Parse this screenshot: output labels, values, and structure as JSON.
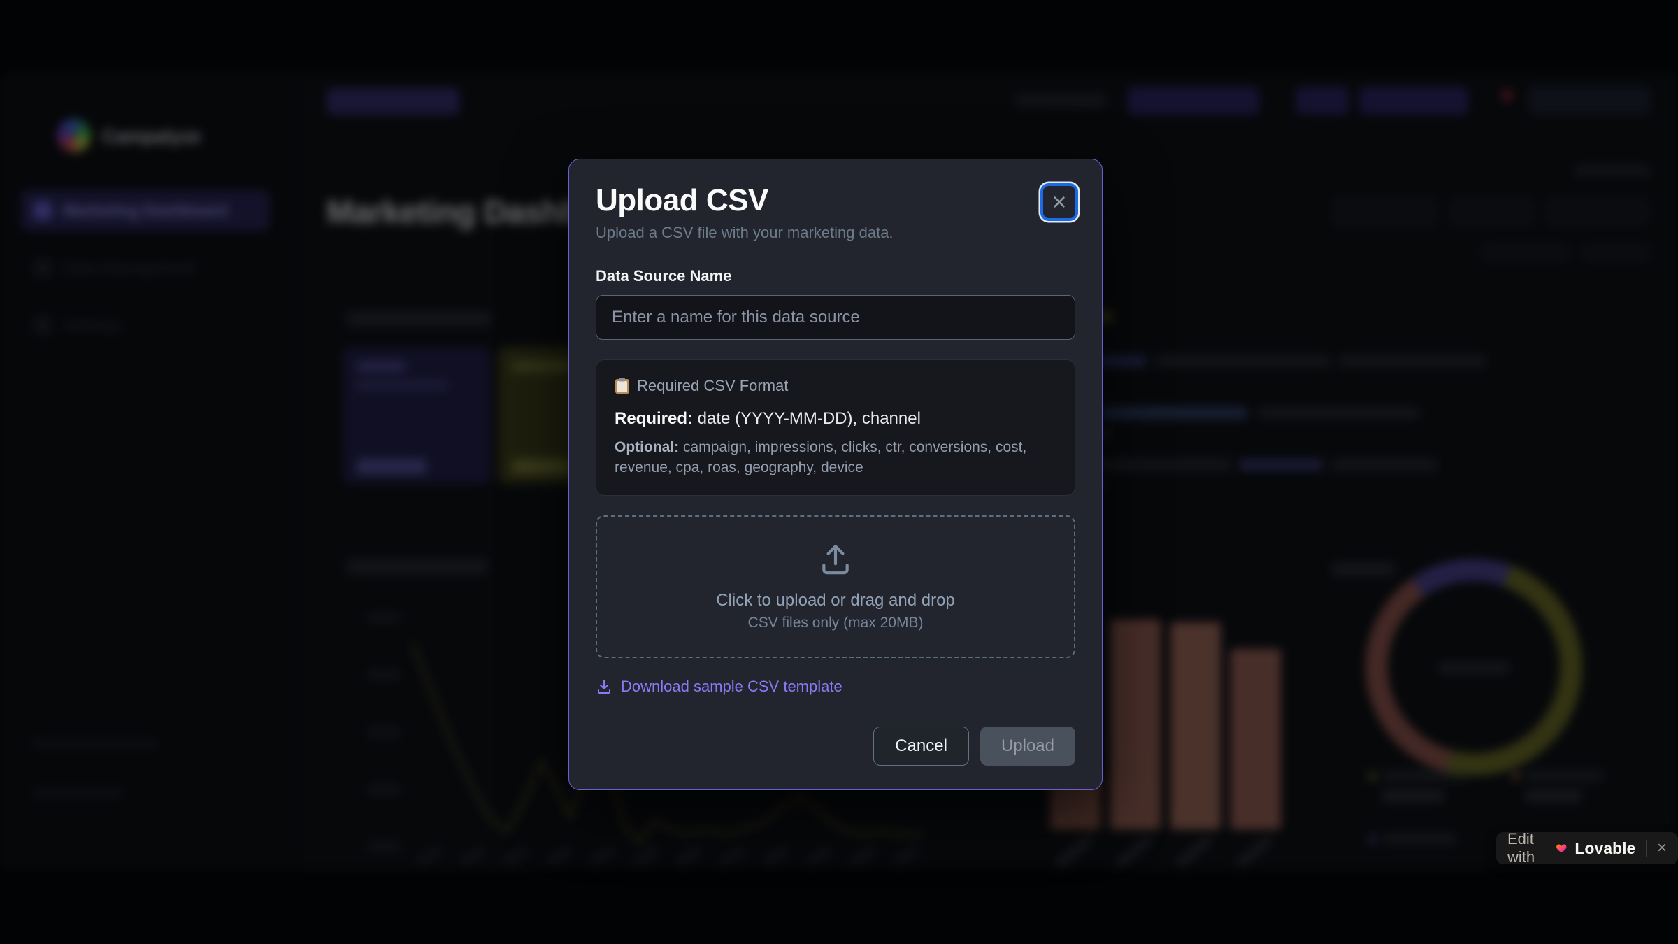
{
  "app": {
    "brand": "Campalyze",
    "heading": "Marketing Dashboard"
  },
  "sidebar": {
    "items": [
      {
        "label": "Marketing Dashboard",
        "active": true
      },
      {
        "label": "Data Management",
        "active": false
      },
      {
        "label": "Settings",
        "active": false
      }
    ]
  },
  "modal": {
    "title": "Upload CSV",
    "subtitle": "Upload a CSV file with your marketing data.",
    "data_source_label": "Data Source Name",
    "input_placeholder": "Enter a name for this data source",
    "format_box": {
      "heading": "Required CSV Format",
      "required_label": "Required:",
      "required_value": " date (YYYY-MM-DD), channel",
      "optional_label": "Optional:",
      "optional_value": " campaign, impressions, clicks, ctr, conversions, cost, revenue, cpa, roas, geography, device"
    },
    "dropzone": {
      "line1": "Click to upload or drag and drop",
      "line2": "CSV files only (max 20MB)"
    },
    "template_link": "Download sample CSV template",
    "cancel_label": "Cancel",
    "upload_label": "Upload",
    "close_glyph": "×"
  },
  "lovable_badge": {
    "prefix": "Edit with",
    "brand": "Lovable",
    "close_glyph": "×"
  },
  "colors": {
    "modal_border_purple": "#6c60cf",
    "link_purple": "#8b7af5",
    "focus_blue": "#1d6ae5",
    "accent_nav_purple": "#a29af0",
    "bar_salmon": "#92544a",
    "line_olive": "#5c5c20",
    "donut_purple": "#4a4090",
    "notification_red": "#8c2531"
  }
}
